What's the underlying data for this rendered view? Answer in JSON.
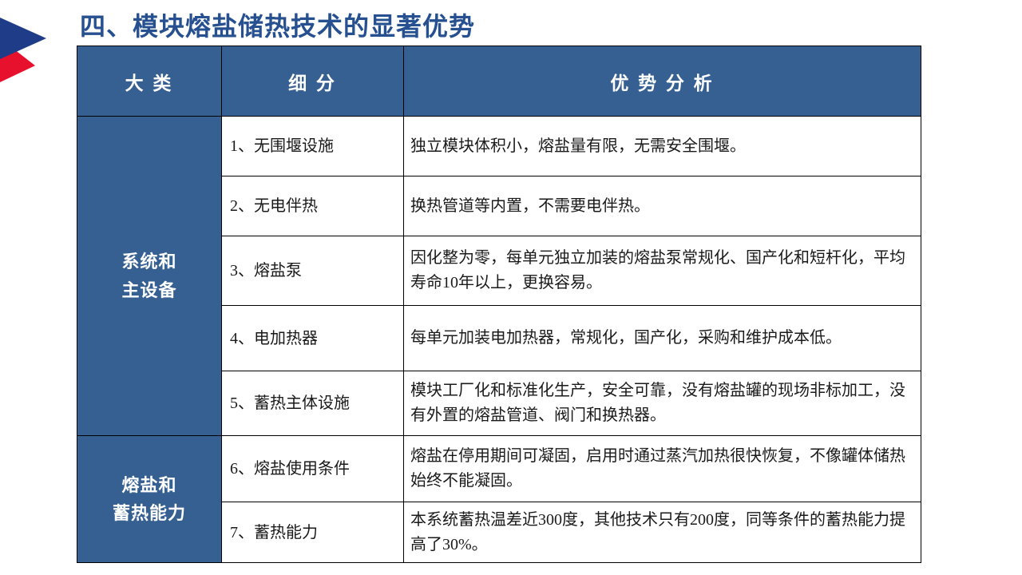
{
  "page": {
    "title": "四、模块熔盐储热技术的显著优势"
  },
  "logo": {
    "blue": "#1E3C87",
    "red": "#E8112D"
  },
  "colors": {
    "header_bg": "#366092",
    "header_text": "#FFFFFF",
    "title": "#26508F",
    "border": "#000000",
    "cell_bg": "#FFFFFF",
    "body_text": "#1A1A1A"
  },
  "table": {
    "headers": {
      "category": "大 类",
      "subdivision": "细 分",
      "analysis": "优 势 分 析"
    },
    "groups": [
      {
        "category_lines": [
          "系统和",
          "主设备"
        ],
        "rows": [
          {
            "sub": "1、无围堰设施",
            "analysis": "独立模块体积小，熔盐量有限，无需安全围堰。"
          },
          {
            "sub": "2、无电伴热",
            "analysis": "换热管道等内置，不需要电伴热。"
          },
          {
            "sub": "3、熔盐泵",
            "analysis": "因化整为零，每单元独立加装的熔盐泵常规化、国产化和短杆化，平均寿命10年以上，更换容易。"
          },
          {
            "sub": "4、电加热器",
            "analysis": "每单元加装电加热器，常规化，国产化，采购和维护成本低。"
          },
          {
            "sub": "5、蓄热主体设施",
            "analysis": "模块工厂化和标准化生产，安全可靠，没有熔盐罐的现场非标加工，没有外置的熔盐管道、阀门和换热器。"
          }
        ]
      },
      {
        "category_lines": [
          "熔盐和",
          "蓄热能力"
        ],
        "rows": [
          {
            "sub": "6、熔盐使用条件",
            "analysis": "熔盐在停用期间可凝固，启用时通过蒸汽加热很快恢复，不像罐体储热始终不能凝固。"
          },
          {
            "sub": "7、蓄热能力",
            "analysis": "本系统蓄热温差近300度，其他技术只有200度，同等条件的蓄热能力提高了30%。"
          }
        ]
      }
    ]
  }
}
